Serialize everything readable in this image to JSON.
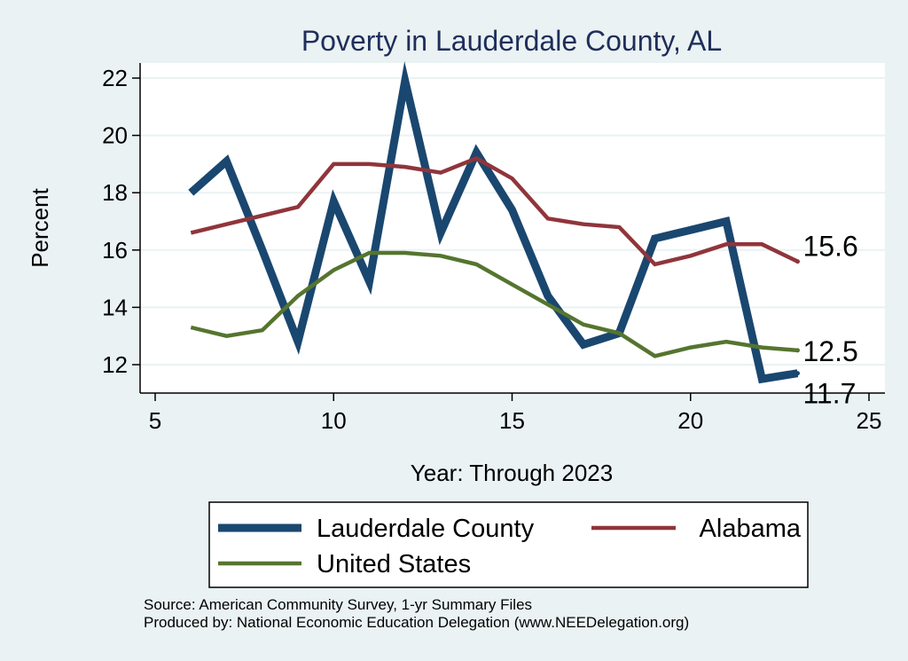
{
  "chart_data": {
    "type": "line",
    "title": "Poverty in Lauderdale County, AL",
    "xlabel": "Year: Through 2023",
    "ylabel": "Percent",
    "xlim": [
      5,
      25
    ],
    "ylim": [
      11,
      22.5
    ],
    "xticks": [
      5,
      10,
      15,
      20,
      25
    ],
    "yticks": [
      12,
      14,
      16,
      18,
      20,
      22
    ],
    "grid": true,
    "x": [
      6,
      7,
      8,
      9,
      10,
      11,
      12,
      13,
      14,
      15,
      16,
      17,
      18,
      19,
      20,
      21,
      22,
      23
    ],
    "series": [
      {
        "name": "Lauderdale County",
        "color": "#1a476f",
        "values": [
          18.0,
          19.1,
          16.0,
          12.8,
          17.7,
          14.9,
          21.9,
          16.6,
          19.4,
          17.4,
          14.4,
          12.7,
          13.1,
          16.4,
          16.7,
          17.0,
          11.5,
          11.7
        ],
        "end_label": "11.7"
      },
      {
        "name": "Alabama",
        "color": "#90353b",
        "values": [
          16.6,
          16.9,
          17.2,
          17.5,
          19.0,
          19.0,
          18.9,
          18.7,
          19.2,
          18.5,
          17.1,
          16.9,
          16.8,
          15.5,
          15.8,
          16.2,
          16.2,
          15.6
        ],
        "end_label": "15.6"
      },
      {
        "name": "United States",
        "color": "#55752f",
        "values": [
          13.3,
          13.0,
          13.2,
          14.4,
          15.3,
          15.9,
          15.9,
          15.8,
          15.5,
          14.8,
          14.1,
          13.4,
          13.1,
          12.3,
          12.6,
          12.8,
          12.6,
          12.5
        ],
        "end_label": "12.5"
      }
    ],
    "legend": [
      "Lauderdale County",
      "Alabama",
      "United States"
    ]
  },
  "source": {
    "line1": "Source: American Community Survey, 1-yr Summary Files",
    "line2": "Produced by: National Economic Education Delegation (www.NEEDelegation.org)"
  }
}
